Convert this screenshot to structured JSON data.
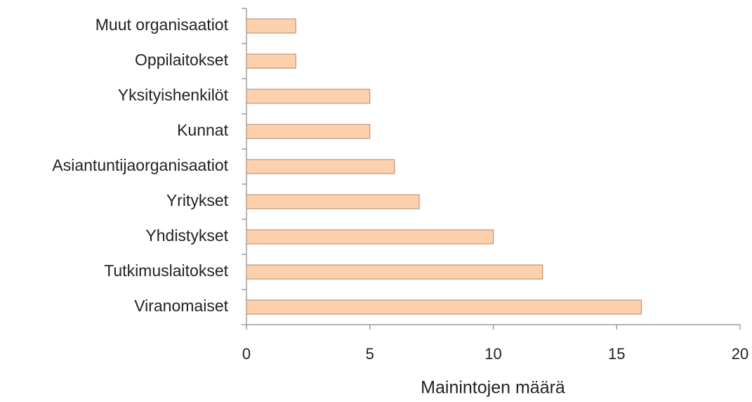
{
  "chart_data": {
    "type": "barh",
    "categories": [
      "Muut organisaatiot",
      "Oppilaitokset",
      "Yksityishenkilöt",
      "Kunnat",
      "Asiantuntijaorganisaatiot",
      "Yritykset",
      "Yhdistykset",
      "Tutkimuslaitokset",
      "Viranomaiset"
    ],
    "values": [
      2,
      2,
      5,
      5,
      6,
      7,
      10,
      12,
      16
    ],
    "color": "#fdd0ae",
    "edge_color": "#b0876a",
    "xlabel": "Mainintojen määrä",
    "xlim": [
      0,
      20
    ],
    "xticks": [
      0,
      5,
      10,
      15,
      20
    ]
  }
}
